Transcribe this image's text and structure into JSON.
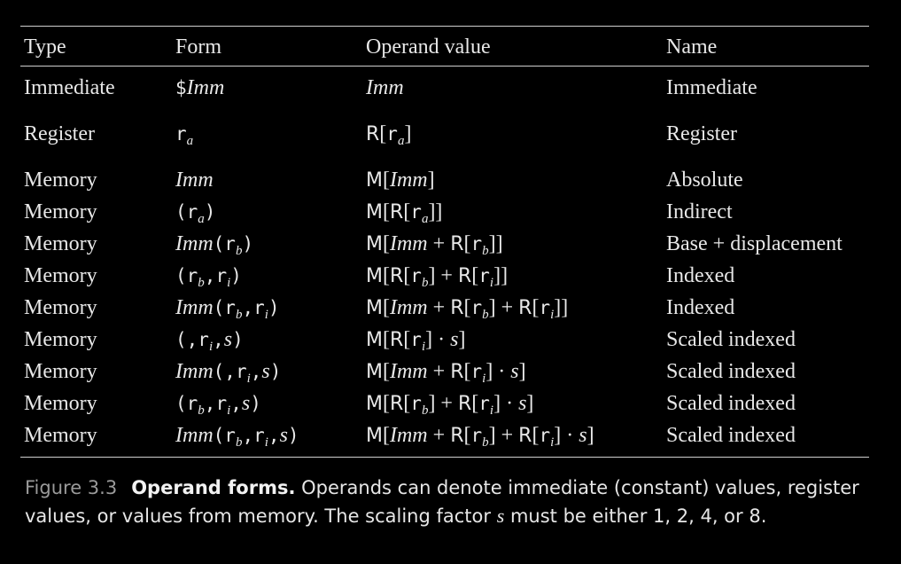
{
  "table": {
    "headers": {
      "type": "Type",
      "form": "Form",
      "value": "Operand value",
      "name": "Name"
    },
    "rows": [
      {
        "type": "Immediate",
        "form": "$Imm",
        "value": "Imm",
        "name": "Immediate"
      },
      {
        "type": "Register",
        "form": "r_a",
        "value": "R[r_a]",
        "name": "Register"
      },
      {
        "type": "Memory",
        "form": "Imm",
        "value": "M[Imm]",
        "name": "Absolute"
      },
      {
        "type": "Memory",
        "form": "(r_a)",
        "value": "M[R[r_a]]",
        "name": "Indirect"
      },
      {
        "type": "Memory",
        "form": "Imm(r_b)",
        "value": "M[Imm + R[r_b]]",
        "name": "Base + displacement"
      },
      {
        "type": "Memory",
        "form": "(r_b,r_i)",
        "value": "M[R[r_b] + R[r_i]]",
        "name": "Indexed"
      },
      {
        "type": "Memory",
        "form": "Imm(r_b,r_i)",
        "value": "M[Imm + R[r_b] + R[r_i]]",
        "name": "Indexed"
      },
      {
        "type": "Memory",
        "form": "(,r_i,s)",
        "value": "M[R[r_i] · s]",
        "name": "Scaled indexed"
      },
      {
        "type": "Memory",
        "form": "Imm(,r_i,s)",
        "value": "M[Imm + R[r_i] · s]",
        "name": "Scaled indexed"
      },
      {
        "type": "Memory",
        "form": "(r_b,r_i,s)",
        "value": "M[R[r_b] + R[r_i] · s]",
        "name": "Scaled indexed"
      },
      {
        "type": "Memory",
        "form": "Imm(r_b,r_i,s)",
        "value": "M[Imm + R[r_b] + R[r_i] · s]",
        "name": "Scaled indexed"
      }
    ]
  },
  "caption": {
    "number": "Figure 3.3",
    "title": "Operand forms.",
    "text_before_var": "Operands can denote immediate (constant) values, register values, or values from memory. The scaling factor",
    "var": "s",
    "text_after_var": "must be either 1, 2, 4, or 8."
  }
}
